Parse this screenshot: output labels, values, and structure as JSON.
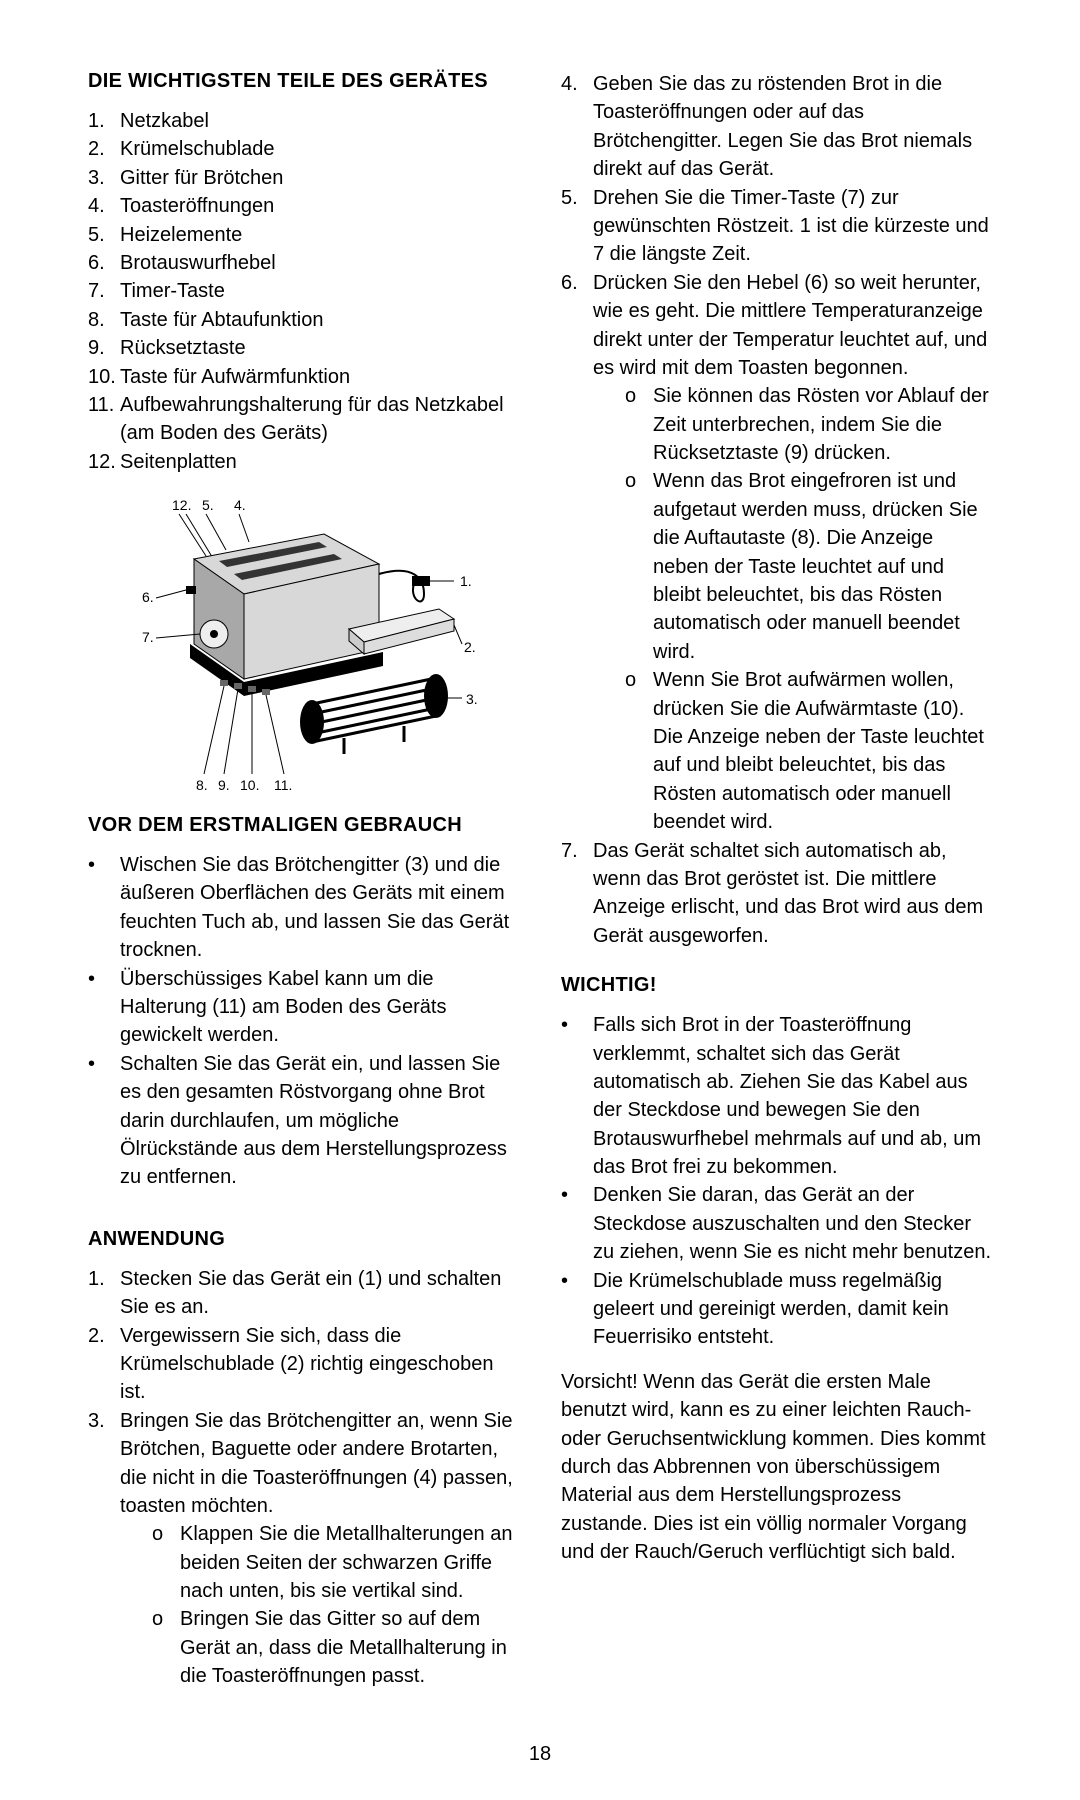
{
  "pageNumber": "18",
  "left": {
    "partsHeading": "DIE WICHTIGSTEN TEILE DES GERÄTES",
    "parts": [
      {
        "n": "1.",
        "t": "Netzkabel"
      },
      {
        "n": "2.",
        "t": "Krümelschublade"
      },
      {
        "n": "3.",
        "t": "Gitter für Brötchen"
      },
      {
        "n": "4.",
        "t": "Toasteröffnungen"
      },
      {
        "n": "5.",
        "t": "Heizelemente"
      },
      {
        "n": "6.",
        "t": "Brotauswurfhebel"
      },
      {
        "n": "7.",
        "t": "Timer-Taste"
      },
      {
        "n": "8.",
        "t": "Taste für Abtaufunktion"
      },
      {
        "n": "9.",
        "t": "Rücksetztaste"
      },
      {
        "n": "10.",
        "t": "Taste für Aufwärmfunktion"
      },
      {
        "n": "11.",
        "t": "Aufbewahrungshalterung für das Netzkabel (am Boden des Geräts)"
      },
      {
        "n": "12.",
        "t": "Seitenplatten"
      }
    ],
    "beforeHeading": "VOR DEM ERSTMALIGEN GEBRAUCH",
    "beforeItems": [
      "Wischen Sie das Brötchengitter (3) und die äußeren Oberflächen des Geräts mit einem feuchten Tuch ab, und lassen Sie das Gerät trocknen.",
      "Überschüssiges Kabel kann um die Halterung (11) am Boden des Geräts gewickelt werden.",
      "Schalten Sie das Gerät ein, und lassen Sie es den gesamten Röstvorgang ohne Brot darin durchlaufen, um mögliche Ölrückstände aus dem Herstellungsprozess zu entfernen."
    ],
    "useHeading": "ANWENDUNG",
    "useSteps": [
      {
        "n": "1.",
        "t": "Stecken Sie das Gerät ein (1) und schalten Sie es an."
      },
      {
        "n": "2.",
        "t": "Vergewissern Sie sich, dass die Krümelschublade (2) richtig eingeschoben ist."
      },
      {
        "n": "3.",
        "t": "Bringen Sie das Brötchengitter an, wenn Sie Brötchen, Baguette oder andere Brotarten, die nicht in die Toasteröffnungen (4) passen, toasten möchten.",
        "sub": [
          "Klappen Sie die Metallhalterungen an beiden Seiten der schwarzen Griffe nach unten, bis sie vertikal sind.",
          "Bringen Sie das Gitter so auf dem Gerät an, dass die Metallhalterung in die Toasteröffnungen passt."
        ]
      }
    ]
  },
  "right": {
    "useStepsCont": [
      {
        "n": "4.",
        "t": "Geben Sie das zu röstenden Brot in die Toasteröffnungen oder auf das Brötchengitter. Legen Sie das Brot niemals direkt auf das Gerät."
      },
      {
        "n": "5.",
        "t": "Drehen Sie die Timer-Taste (7) zur gewünschten Röstzeit. 1 ist die kürzeste und 7 die längste Zeit."
      },
      {
        "n": "6.",
        "t": "Drücken Sie den Hebel (6) so weit herunter, wie es geht. Die mittlere Temperaturanzeige direkt unter der Temperatur leuchtet auf, und es wird mit dem Toasten begonnen.",
        "sub": [
          "Sie können das Rösten vor Ablauf der Zeit unterbrechen, indem Sie die Rücksetztaste (9) drücken.",
          "Wenn das Brot eingefroren ist und aufgetaut werden muss, drücken Sie die Auftautaste (8). Die Anzeige neben der Taste leuchtet auf und bleibt beleuchtet, bis das Rösten automatisch oder manuell beendet wird.",
          "Wenn Sie Brot aufwärmen wollen, drücken Sie die Aufwärmtaste (10). Die Anzeige neben der Taste leuchtet auf und bleibt beleuchtet, bis das Rösten automatisch oder manuell beendet wird."
        ]
      },
      {
        "n": "7.",
        "t": "Das Gerät schaltet sich automatisch ab, wenn das Brot geröstet ist. Die mittlere Anzeige erlischt, und das Brot wird aus dem Gerät ausgeworfen."
      }
    ],
    "importantHeading": "WICHTIG!",
    "importantItems": [
      "Falls sich Brot in der Toasteröffnung verklemmt, schaltet sich das Gerät automatisch ab. Ziehen Sie das Kabel aus der Steckdose und bewegen Sie den Brotauswurfhebel mehrmals auf und ab, um das Brot frei zu bekommen.",
      "Denken Sie daran, das Gerät an der Steckdose auszuschalten und den Stecker zu ziehen, wenn Sie es nicht mehr benutzen.",
      "Die Krümelschublade muss regelmäßig geleert und gereinigt werden, damit kein Feuerrisiko entsteht."
    ],
    "caution": "Vorsicht! Wenn das Gerät die ersten Male benutzt wird, kann es zu einer leichten Rauch- oder Geruchsentwicklung kommen. Dies kommt durch das Abbrennen von überschüssigem Material aus dem Herstellungsprozess zustande. Dies ist ein völlig normaler Vorgang und der Rauch/Geruch verflüchtigt sich bald."
  },
  "diagram": {
    "labels": {
      "l12": "12.",
      "l5": "5.",
      "l4": "4.",
      "l1": "1.",
      "l2": "2.",
      "l3": "3.",
      "l6": "6.",
      "l7": "7.",
      "l8": "8.",
      "l9": "9.",
      "l10": "10.",
      "l11": "11."
    },
    "colors": {
      "line": "#000000",
      "bodyLight": "#d8d8d8",
      "bodyMid": "#a8a8a8",
      "bodyDark": "#555555",
      "black": "#000000",
      "white": "#ffffff"
    },
    "fontSize": 14
  }
}
